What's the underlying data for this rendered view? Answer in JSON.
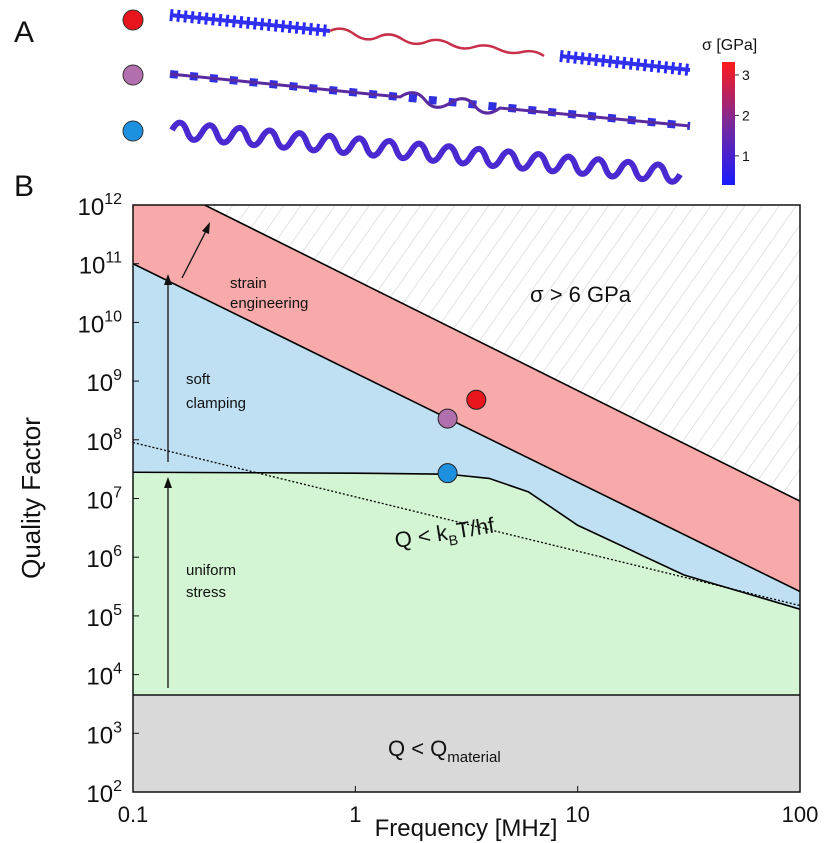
{
  "panel_a": {
    "label": "A",
    "colorbar": {
      "label": "σ [GPa]",
      "lim": [
        0.28,
        3.32
      ],
      "ticks": [
        1,
        2,
        3
      ]
    }
  },
  "chart_data": {
    "type": "line",
    "panel_label": "B",
    "xlabel": "Frequency [MHz]",
    "ylabel": "Quality Factor",
    "xscale": "log",
    "yscale": "log",
    "xlim": [
      0.1,
      100
    ],
    "ylim": [
      100,
      1000000000000
    ],
    "xticks": [
      0.1,
      1,
      10,
      100
    ],
    "yticks": [
      {
        "value": 100,
        "label": "10",
        "exponent": "2"
      },
      {
        "value": 1000,
        "label": "10",
        "exponent": "3"
      },
      {
        "value": 10000,
        "label": "10",
        "exponent": "4"
      },
      {
        "value": 100000,
        "label": "10",
        "exponent": "5"
      },
      {
        "value": 1000000,
        "label": "10",
        "exponent": "6"
      },
      {
        "value": 10000000,
        "label": "10",
        "exponent": "7"
      },
      {
        "value": 100000000,
        "label": "10",
        "exponent": "8"
      },
      {
        "value": 1000000000,
        "label": "10",
        "exponent": "9"
      },
      {
        "value": 10000000000,
        "label": "10",
        "exponent": "10"
      },
      {
        "value": 100000000000,
        "label": "10",
        "exponent": "11"
      },
      {
        "value": 1000000000000,
        "label": "10",
        "exponent": "12"
      }
    ],
    "material_limit": 4500,
    "uniform_stress_limit": {
      "x": [
        0.1,
        1,
        2.6,
        4,
        6,
        10,
        30,
        100
      ],
      "y": [
        28000000,
        27000000,
        26000000,
        22000000,
        13000000,
        3500000,
        500000,
        130000
      ],
      "color": "#000000"
    },
    "soft_clamping_limit": {
      "x": [
        0.1,
        100
      ],
      "y": [
        100000000000,
        260000
      ],
      "color": "#000000"
    },
    "strain_limit": {
      "x": [
        0.21,
        100
      ],
      "y": [
        1000000000000,
        9000000
      ],
      "color": "#000000"
    },
    "thermal_limit": {
      "x": [
        0.1,
        100
      ],
      "y": [
        90000000,
        150000
      ],
      "color": "#000000",
      "dashed": true
    },
    "region_colors": {
      "material": "#d9d9d9",
      "uniform": "#d3f5d3",
      "soft": "#bfe0f3",
      "strain": "#f8a9aa",
      "hatch": "#d0d0d0"
    },
    "points": {
      "x": [
        3.5,
        2.6,
        2.6
      ],
      "y": [
        480000000,
        230000000,
        27000000
      ],
      "colors": [
        "#e8151c",
        "#b26fae",
        "#1e90e0"
      ]
    },
    "region_labels": {
      "strain": [
        "strain",
        "engineering"
      ],
      "soft": [
        "soft",
        "clamping"
      ],
      "uniform": [
        "uniform",
        "stress"
      ]
    },
    "annotations": {
      "stress_limit": "σ > 6 GPa",
      "thermal": {
        "text": "Q < k",
        "sub": "B",
        "tail": "T/hf"
      },
      "material": {
        "text": "Q < Q",
        "sub": "material"
      }
    }
  }
}
